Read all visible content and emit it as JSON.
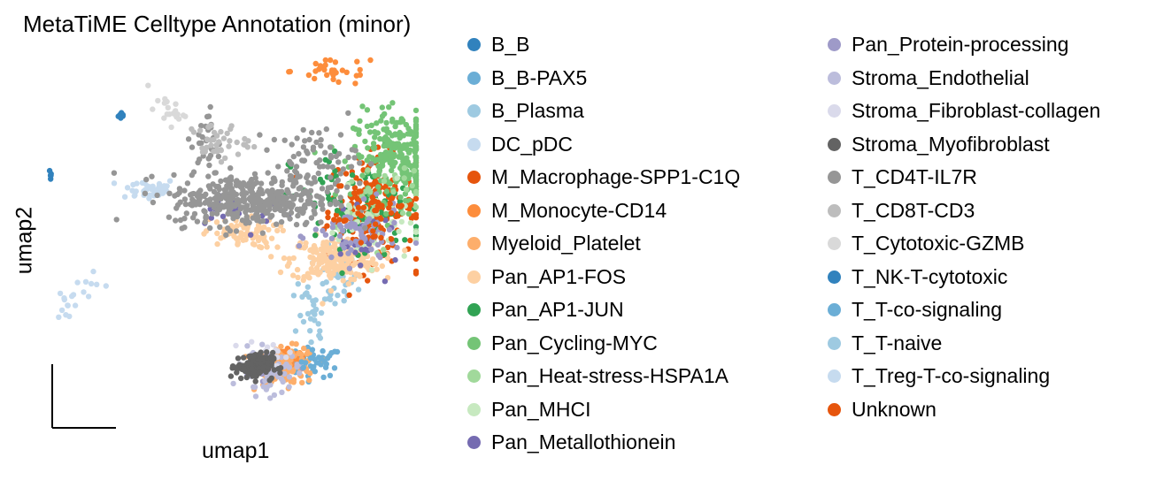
{
  "chart_data": {
    "type": "scatter",
    "title": "MetaTiME Celltype Annotation (minor)",
    "xlabel": "umap1",
    "ylabel": "umap2",
    "xlim": [
      0,
      100
    ],
    "ylim": [
      0,
      100
    ],
    "grid": false,
    "legend_placement": "right",
    "series": [
      {
        "name": "B_B",
        "color": "#3182bd",
        "clusters": [
          {
            "x": 20,
            "y": 85,
            "sx": 0.5,
            "sy": 0.5,
            "n": 10
          }
        ]
      },
      {
        "name": "B_B-PAX5",
        "color": "#6baed6",
        "clusters": [
          {
            "x": 72,
            "y": 18,
            "sx": 4,
            "sy": 2,
            "n": 40
          }
        ]
      },
      {
        "name": "B_Plasma",
        "color": "#9ecae1",
        "clusters": [
          {
            "x": 78,
            "y": 40,
            "sx": 3,
            "sy": 4,
            "n": 35
          },
          {
            "x": 72,
            "y": 28,
            "sx": 1.5,
            "sy": 4,
            "n": 18
          }
        ]
      },
      {
        "name": "DC_pDC",
        "color": "#c6dbef",
        "clusters": [
          {
            "x": 5,
            "y": 34,
            "sx": 1.2,
            "sy": 2.5,
            "n": 12
          },
          {
            "x": 27,
            "y": 65,
            "sx": 4,
            "sy": 1.5,
            "n": 40
          }
        ]
      },
      {
        "name": "M_Macrophage-SPP1-C1Q",
        "color": "#e6550d",
        "clusters": [
          {
            "x": 88,
            "y": 60,
            "sx": 6,
            "sy": 7,
            "n": 200
          }
        ]
      },
      {
        "name": "M_Monocyte-CD14",
        "color": "#fd8d3c",
        "clusters": [
          {
            "x": 78,
            "y": 97,
            "sx": 6,
            "sy": 2,
            "n": 30
          },
          {
            "x": 66,
            "y": 18,
            "sx": 2,
            "sy": 2,
            "n": 25
          }
        ]
      },
      {
        "name": "Myeloid_Platelet",
        "color": "#fdae6b",
        "clusters": [
          {
            "x": 65,
            "y": 17,
            "sx": 4,
            "sy": 2.5,
            "n": 110
          }
        ]
      },
      {
        "name": "Pan_AP1-FOS",
        "color": "#fdd0a2",
        "clusters": [
          {
            "x": 78,
            "y": 46,
            "sx": 6,
            "sy": 3,
            "n": 220
          },
          {
            "x": 52,
            "y": 53,
            "sx": 5,
            "sy": 2,
            "n": 70
          }
        ]
      },
      {
        "name": "Pan_AP1-JUN",
        "color": "#31a354",
        "clusters": [
          {
            "x": 84,
            "y": 60,
            "sx": 9,
            "sy": 8,
            "n": 90
          }
        ]
      },
      {
        "name": "Pan_Cycling-MYC",
        "color": "#74c476",
        "clusters": [
          {
            "x": 95,
            "y": 74,
            "sx": 6,
            "sy": 6,
            "n": 250
          }
        ]
      },
      {
        "name": "Pan_Heat-stress-HSPA1A",
        "color": "#a1d99b",
        "clusters": [
          {
            "x": 90,
            "y": 62,
            "sx": 6,
            "sy": 6,
            "n": 40
          }
        ]
      },
      {
        "name": "Pan_MHCI",
        "color": "#c7e9c0",
        "clusters": [
          {
            "x": 88,
            "y": 55,
            "sx": 6,
            "sy": 5,
            "n": 40
          }
        ]
      },
      {
        "name": "Pan_Metallothionein",
        "color": "#756bb1",
        "clusters": [
          {
            "x": 52,
            "y": 60,
            "sx": 8,
            "sy": 3,
            "n": 20
          },
          {
            "x": 86,
            "y": 50,
            "sx": 5,
            "sy": 4,
            "n": 20
          }
        ]
      },
      {
        "name": "Pan_Protein-processing",
        "color": "#9e9ac8",
        "clusters": [
          {
            "x": 84,
            "y": 52,
            "sx": 6,
            "sy": 4,
            "n": 70
          },
          {
            "x": 60,
            "y": 17,
            "sx": 4,
            "sy": 3,
            "n": 20
          }
        ]
      },
      {
        "name": "Stroma_Endothelial",
        "color": "#bcbddc",
        "clusters": [
          {
            "x": 60,
            "y": 15,
            "sx": 4,
            "sy": 3,
            "n": 50
          }
        ]
      },
      {
        "name": "Stroma_Fibroblast-collagen",
        "color": "#dadaeb",
        "clusters": [
          {
            "x": 60,
            "y": 20,
            "sx": 3,
            "sy": 2,
            "n": 20
          }
        ]
      },
      {
        "name": "Stroma_Myofibroblast",
        "color": "#636363",
        "clusters": [
          {
            "x": 56,
            "y": 17,
            "sx": 2.5,
            "sy": 1.8,
            "n": 130
          }
        ]
      },
      {
        "name": "T_CD4T-IL7R",
        "color": "#969696",
        "clusters": [
          {
            "x": 55,
            "y": 62,
            "sx": 11,
            "sy": 3.5,
            "n": 380
          },
          {
            "x": 72,
            "y": 72,
            "sx": 6,
            "sy": 5,
            "n": 90
          },
          {
            "x": 43,
            "y": 77,
            "sx": 2,
            "sy": 5,
            "n": 30
          }
        ]
      },
      {
        "name": "T_CD8T-CD3",
        "color": "#bdbdbd",
        "clusters": [
          {
            "x": 46,
            "y": 78,
            "sx": 4,
            "sy": 2.5,
            "n": 40
          }
        ]
      },
      {
        "name": "T_Cytotoxic-GZMB",
        "color": "#d9d9d9",
        "clusters": [
          {
            "x": 32,
            "y": 86,
            "sx": 2.5,
            "sy": 2,
            "n": 20
          }
        ]
      },
      {
        "name": "T_NK-T-cytotoxic",
        "color": "#3182bd",
        "clusters": [
          {
            "x": 0.5,
            "y": 69,
            "sx": 0.15,
            "sy": 0.5,
            "n": 6
          }
        ]
      },
      {
        "name": "T_T-co-signaling",
        "color": "#6baed6",
        "clusters": [
          {
            "x": 73,
            "y": 18,
            "sx": 2,
            "sy": 1.5,
            "n": 10
          }
        ]
      },
      {
        "name": "T_T-naive",
        "color": "#9ecae1",
        "clusters": [
          {
            "x": 70,
            "y": 32,
            "sx": 2,
            "sy": 4,
            "n": 10
          }
        ]
      },
      {
        "name": "T_Treg-T-co-signaling",
        "color": "#c6dbef",
        "clusters": [
          {
            "x": 10,
            "y": 40,
            "sx": 2,
            "sy": 3,
            "n": 8
          }
        ]
      },
      {
        "name": "Unknown",
        "color": "#e6550d",
        "clusters": [
          {
            "x": 88,
            "y": 58,
            "sx": 6,
            "sy": 6,
            "n": 40
          }
        ]
      }
    ]
  }
}
